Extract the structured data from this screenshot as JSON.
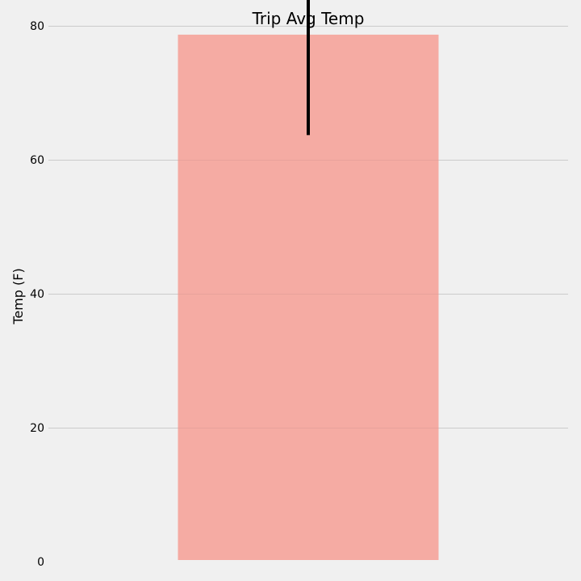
{
  "chart_data": {
    "type": "bar",
    "title": "Trip Avg Temp",
    "xlabel": "",
    "ylabel": "Temp (F)",
    "ylim": [
      0,
      80.5
    ],
    "yticks": [
      0,
      20,
      40,
      60,
      80
    ],
    "grid": true,
    "categories": [
      ""
    ],
    "values": [
      78.7
    ],
    "error": {
      "min": 63.7,
      "max": 93.7
    },
    "colors": {
      "bar": "#f5aba3",
      "bar_shade": "#e8a29b",
      "error_bar": "#000000",
      "background": "#f0f0f0",
      "grid": "#cbcbcb"
    }
  }
}
